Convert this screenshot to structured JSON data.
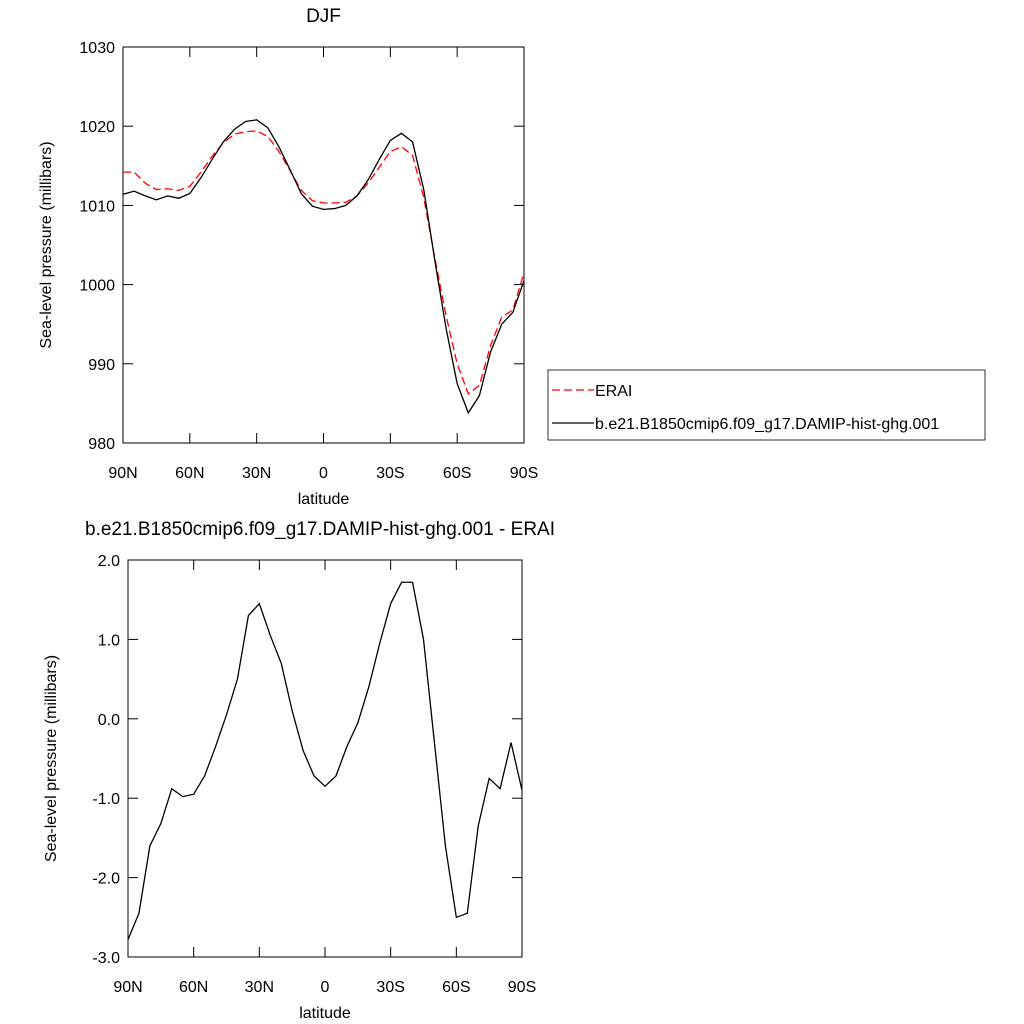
{
  "chart_data": [
    {
      "type": "line",
      "title": "DJF",
      "ylabel": "Sea-level pressure (millibars)",
      "xlabel": "latitude",
      "x": [
        90,
        85,
        80,
        75,
        70,
        65,
        60,
        55,
        50,
        45,
        40,
        35,
        30,
        25,
        20,
        15,
        10,
        5,
        0,
        -5,
        -10,
        -15,
        -20,
        -25,
        -30,
        -35,
        -40,
        -45,
        -50,
        -55,
        -60,
        -65,
        -70,
        -75,
        -80,
        -85,
        -90
      ],
      "xlim": [
        90,
        -90
      ],
      "xticks": [
        {
          "value": 90,
          "label": "90N"
        },
        {
          "value": 60,
          "label": "60N"
        },
        {
          "value": 30,
          "label": "30N"
        },
        0,
        {
          "value": -30,
          "label": "30S"
        },
        {
          "value": -60,
          "label": "60S"
        },
        {
          "value": -90,
          "label": "90S"
        }
      ],
      "ylim": [
        980,
        1030
      ],
      "yticks": [
        980,
        990,
        1000,
        1010,
        1020,
        1030
      ],
      "legend": "right",
      "series": [
        {
          "name": "ERAI",
          "color": "#ff0000",
          "dash": true,
          "values": [
            1014.2,
            1014.2,
            1012.8,
            1012.0,
            1012.1,
            1011.9,
            1012.4,
            1014.2,
            1016.2,
            1017.9,
            1019.0,
            1019.3,
            1019.4,
            1018.7,
            1016.8,
            1014.4,
            1011.9,
            1010.6,
            1010.3,
            1010.3,
            1010.4,
            1011.2,
            1012.8,
            1014.8,
            1016.8,
            1017.4,
            1016.3,
            1011.0,
            1003.3,
            996.1,
            990.0,
            986.2,
            987.3,
            992.3,
            995.9,
            996.8,
            1001.5
          ]
        },
        {
          "name": "b.e21.B1850cmip6.f09_g17.DAMIP-hist-ghg.001",
          "color": "#000000",
          "dash": false,
          "values": [
            1011.4,
            1011.8,
            1011.2,
            1010.7,
            1011.2,
            1010.9,
            1011.5,
            1013.5,
            1015.8,
            1018.0,
            1019.6,
            1020.6,
            1020.8,
            1019.8,
            1017.4,
            1014.5,
            1011.5,
            1009.9,
            1009.5,
            1009.6,
            1010.0,
            1011.2,
            1013.2,
            1015.8,
            1018.2,
            1019.1,
            1018.0,
            1012.0,
            1003.0,
            994.5,
            987.5,
            983.8,
            986.0,
            991.5,
            995.0,
            996.5,
            1000.5
          ]
        }
      ]
    },
    {
      "type": "line",
      "title": "b.e21.B1850cmip6.f09_g17.DAMIP-hist-ghg.001 - ERAI",
      "ylabel": "Sea-level pressure (millibars)",
      "xlabel": "latitude",
      "x": [
        90,
        85,
        80,
        75,
        70,
        65,
        60,
        55,
        50,
        45,
        40,
        35,
        30,
        25,
        20,
        15,
        10,
        5,
        0,
        -5,
        -10,
        -15,
        -20,
        -25,
        -30,
        -35,
        -40,
        -45,
        -50,
        -55,
        -60,
        -65,
        -70,
        -75,
        -80,
        -85,
        -90
      ],
      "xlim": [
        90,
        -90
      ],
      "xticks": [
        {
          "value": 90,
          "label": "90N"
        },
        {
          "value": 60,
          "label": "60N"
        },
        {
          "value": 30,
          "label": "30N"
        },
        0,
        {
          "value": -30,
          "label": "30S"
        },
        {
          "value": -60,
          "label": "60S"
        },
        {
          "value": -90,
          "label": "90S"
        }
      ],
      "ylim": [
        -3,
        2
      ],
      "yticks": [
        {
          "value": -3,
          "label": "-3.0"
        },
        {
          "value": -2,
          "label": "-2.0"
        },
        {
          "value": -1,
          "label": "-1.0"
        },
        {
          "value": 0,
          "label": "0.0"
        },
        {
          "value": 1,
          "label": "1.0"
        },
        {
          "value": 2,
          "label": "2.0"
        }
      ],
      "color": "#000000",
      "values": [
        -2.78,
        -2.45,
        -1.6,
        -1.32,
        -0.88,
        -0.98,
        -0.95,
        -0.72,
        -0.35,
        0.05,
        0.5,
        1.3,
        1.45,
        1.05,
        0.7,
        0.1,
        -0.4,
        -0.72,
        -0.85,
        -0.72,
        -0.35,
        -0.05,
        0.4,
        0.95,
        1.45,
        1.72,
        1.72,
        1.0,
        -0.3,
        -1.6,
        -2.5,
        -2.45,
        -1.35,
        -0.75,
        -0.88,
        -0.3,
        -0.9
      ]
    }
  ]
}
